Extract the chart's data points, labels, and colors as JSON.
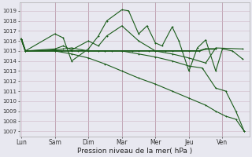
{
  "bg_color": "#e8e8f0",
  "grid_color": "#d0b8c8",
  "line_color": "#1a5c1a",
  "xlabel": "Pression niveau de la mer( hPa )",
  "xlabel_fontsize": 6.5,
  "ytick_fontsize": 5.0,
  "xtick_fontsize": 5.5,
  "ylim_low": 1006.5,
  "ylim_high": 1019.8,
  "xlim_low": -0.05,
  "xlim_high": 6.8,
  "x_labels": [
    "Lun",
    "Sam",
    "Dim",
    "Mar",
    "Mer",
    "Jeu",
    "Ven"
  ],
  "x_positions": [
    0,
    1.0,
    2.0,
    3.0,
    4.0,
    5.0,
    6.0
  ],
  "yticks": [
    1007,
    1008,
    1009,
    1010,
    1011,
    1012,
    1013,
    1014,
    1015,
    1016,
    1017,
    1018,
    1019
  ],
  "s1_x": [
    0,
    0.12,
    1.0,
    1.2,
    1.5,
    1.7,
    2.0,
    2.3,
    2.5,
    2.7,
    3.0,
    3.3,
    3.5,
    3.8,
    4.0,
    4.3,
    4.5,
    4.8,
    5.0,
    5.3,
    5.5,
    5.8
  ],
  "s1_y": [
    1016.2,
    1015.0,
    1015.0,
    1015.0,
    1015.0,
    1015.0,
    1015.0,
    1015.0,
    1015.0,
    1015.0,
    1015.0,
    1015.0,
    1015.0,
    1015.0,
    1015.0,
    1015.0,
    1015.0,
    1015.0,
    1015.0,
    1015.0,
    1015.2,
    1015.2
  ],
  "s2_x": [
    0,
    0.12,
    1.0,
    1.25,
    1.5,
    2.0,
    2.3,
    2.55,
    3.0,
    3.2,
    3.5,
    3.75,
    4.0,
    4.2,
    4.5,
    4.7,
    5.0,
    5.25,
    5.5,
    5.8,
    6.0,
    6.3,
    6.6
  ],
  "s2_y": [
    1016.2,
    1015.0,
    1016.7,
    1016.3,
    1014.0,
    1015.2,
    1016.5,
    1018.0,
    1019.1,
    1019.0,
    1016.7,
    1017.5,
    1015.8,
    1015.5,
    1017.4,
    1016.0,
    1013.0,
    1015.3,
    1016.1,
    1013.0,
    1015.2,
    1015.0,
    1014.2
  ],
  "s3_x": [
    0,
    0.12,
    1.0,
    1.25,
    1.5,
    2.0,
    2.3,
    2.55,
    3.0,
    3.5,
    4.0,
    4.5,
    5.0,
    5.5,
    5.8,
    6.6
  ],
  "s3_y": [
    1016.2,
    1015.0,
    1015.2,
    1015.5,
    1015.1,
    1016.0,
    1015.5,
    1016.5,
    1017.5,
    1016.0,
    1015.0,
    1014.7,
    1014.3,
    1013.8,
    1015.3,
    1015.2
  ],
  "s4_x": [
    0,
    0.12,
    1.0,
    1.25,
    1.5,
    2.0,
    2.5,
    3.0,
    3.5,
    4.0,
    4.5,
    5.0,
    5.4,
    5.8,
    6.1,
    6.4,
    6.65
  ],
  "s4_y": [
    1016.2,
    1015.0,
    1015.1,
    1015.2,
    1015.3,
    1015.0,
    1015.0,
    1015.0,
    1014.7,
    1014.4,
    1014.0,
    1013.5,
    1013.3,
    1011.3,
    1011.0,
    1009.0,
    1007.0
  ],
  "s5_x": [
    0,
    0.12,
    1.0,
    1.5,
    2.0,
    2.5,
    3.0,
    3.5,
    4.0,
    4.5,
    5.0,
    5.5,
    5.8,
    6.1,
    6.4,
    6.65
  ],
  "s5_y": [
    1016.2,
    1015.0,
    1015.0,
    1014.7,
    1014.3,
    1013.7,
    1013.0,
    1012.3,
    1011.7,
    1011.0,
    1010.3,
    1009.6,
    1009.0,
    1008.5,
    1008.2,
    1007.0
  ]
}
